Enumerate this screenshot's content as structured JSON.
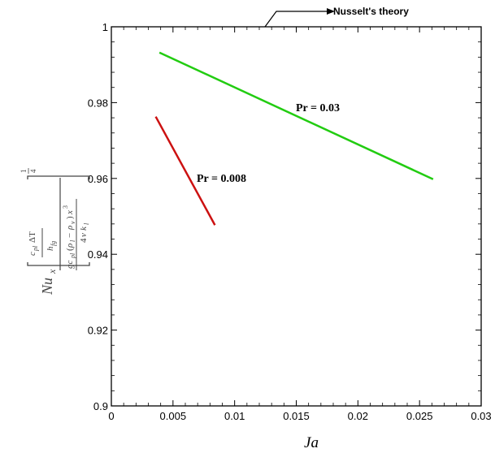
{
  "chart_data": {
    "type": "line",
    "xlabel": "Ja",
    "xlim": [
      0,
      0.03
    ],
    "ylim": [
      0.9,
      1.0
    ],
    "x_ticks": [
      "0",
      "0.005",
      "0.01",
      "0.015",
      "0.02",
      "0.025",
      "0.03"
    ],
    "y_ticks": [
      "0.9",
      "0.92",
      "0.94",
      "0.96",
      "0.98",
      "1"
    ],
    "series": [
      {
        "name": "Pr = 0.03",
        "color": "#22cc11",
        "x": [
          0.0039,
          0.0261
        ],
        "y": [
          0.9932,
          0.9598
        ]
      },
      {
        "name": "Pr = 0.008",
        "color": "#cc1111",
        "x": [
          0.0036,
          0.0084
        ],
        "y": [
          0.9763,
          0.9477
        ]
      }
    ],
    "annotation": {
      "text": "Nusselt's theory",
      "x": 0.0126,
      "y": 1.0
    },
    "grid": false
  }
}
